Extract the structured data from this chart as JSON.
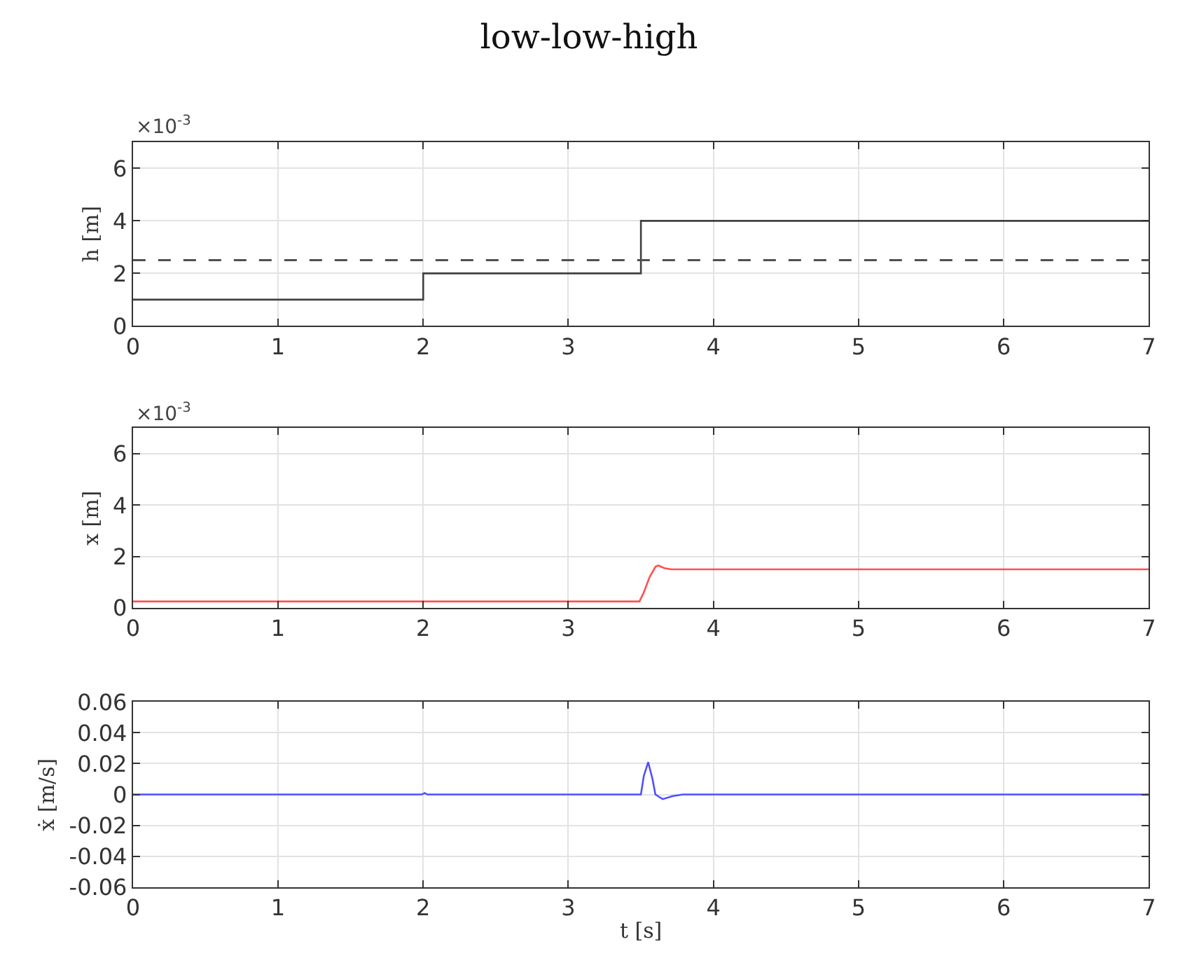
{
  "chart_data": [
    {
      "type": "step",
      "title": "low-low-high",
      "ylabel": "h [m]",
      "annotations": [
        "×10$^{-3}$"
      ],
      "xlim": [
        0,
        7
      ],
      "xticks": [
        0,
        1,
        2,
        3,
        4,
        5,
        6,
        7
      ],
      "ylim": [
        0,
        7
      ],
      "yticks": [
        0,
        2,
        4,
        6
      ],
      "grid": true,
      "series": [
        {
          "color": "#404040",
          "x": [
            0,
            2,
            3.5,
            7
          ],
          "values": [
            1,
            2,
            4,
            4
          ]
        }
      ],
      "ref_lines": [
        {
          "axis": "y",
          "value": 2.5,
          "color": "#505050",
          "line_style": "dashed"
        }
      ]
    },
    {
      "type": "line",
      "ylabel": "x [m]",
      "annotations": [
        "×10$^{-3}$"
      ],
      "xlim": [
        0,
        7
      ],
      "xticks": [
        0,
        1,
        2,
        3,
        4,
        5,
        6,
        7
      ],
      "ylim": [
        0,
        7
      ],
      "yticks": [
        0,
        2,
        4,
        6
      ],
      "grid": true,
      "series": [
        {
          "color": "#ff5050",
          "x": [
            0,
            3.49,
            3.52,
            3.56,
            3.6,
            3.62,
            3.66,
            3.71,
            3.8,
            7
          ],
          "values": [
            0.25,
            0.25,
            0.6,
            1.2,
            1.6,
            1.65,
            1.55,
            1.5,
            1.5,
            1.5
          ]
        }
      ]
    },
    {
      "type": "line",
      "ylabel": "ẋ [m/s]",
      "xlabel": "t [s]",
      "xlim": [
        0,
        7
      ],
      "xticks": [
        0,
        1,
        2,
        3,
        4,
        5,
        6,
        7
      ],
      "ylim": [
        -0.06,
        0.06
      ],
      "yticks": [
        -0.06,
        -0.04,
        -0.02,
        0,
        0.02,
        0.04,
        0.06
      ],
      "grid": true,
      "series": [
        {
          "color": "#5050ff",
          "x": [
            0,
            1.99,
            2.01,
            2.03,
            3.5,
            3.52,
            3.55,
            3.58,
            3.6,
            3.65,
            3.72,
            3.79,
            7
          ],
          "values": [
            0,
            0,
            0.001,
            0,
            0,
            0.012,
            0.021,
            0.01,
            0,
            -0.003,
            -0.001,
            0,
            0
          ]
        }
      ]
    }
  ]
}
